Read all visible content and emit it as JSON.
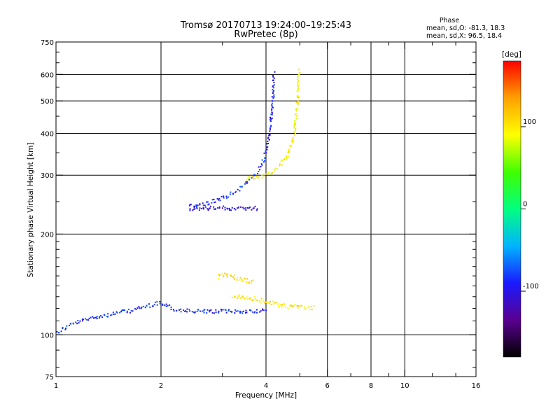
{
  "chart_data": {
    "type": "scatter",
    "title": "Tromsø 20170713 19:24:00–19:25:43",
    "subtitle": "RwPretec (8p)",
    "xlabel": "Frequency [MHz]",
    "ylabel": "Stationary phase Virtual Height [km]",
    "x_scale": "log",
    "y_scale": "log",
    "xlim": [
      1,
      16
    ],
    "ylim": [
      75,
      750
    ],
    "x_ticks": [
      1,
      2,
      4,
      6,
      8,
      10,
      16
    ],
    "x_tick_labels": [
      "1",
      "2",
      "4",
      "6",
      "8",
      "10",
      "16"
    ],
    "x_minor_ticks": [
      3,
      5,
      7,
      9,
      12,
      14
    ],
    "y_ticks": [
      75,
      100,
      200,
      300,
      400,
      500,
      600,
      750
    ],
    "y_tick_labels": [
      "75",
      "100",
      "200",
      "300",
      "400",
      "500",
      "600",
      "750"
    ],
    "y_minor_ticks": [
      80,
      90,
      110,
      120,
      130,
      140,
      150,
      160,
      170,
      180,
      190,
      250,
      350,
      450,
      550,
      650,
      700
    ],
    "grid": true,
    "phase_stats": {
      "heading": "Phase",
      "line_o": "mean, sd,O: -81.3, 18.3",
      "line_x": "mean, sd,X:  96.5, 18.4"
    },
    "colorbar": {
      "label": "[deg]",
      "range": [
        -180,
        180
      ],
      "tick_values": [
        100,
        0,
        -100
      ],
      "tick_labels": [
        "100",
        "0",
        "-100"
      ],
      "colors": [
        "#000000",
        "#5a0090",
        "#1a1aff",
        "#00b4ff",
        "#00ff80",
        "#40ff00",
        "#ffff00",
        "#ffa000",
        "#ff0000"
      ]
    },
    "series": [
      {
        "mode": "O",
        "phase": -85,
        "x": [
          1.0,
          1.1,
          1.2,
          1.3,
          1.4,
          1.5,
          1.6,
          1.7,
          1.8,
          1.9,
          2.0,
          2.2,
          2.5,
          3.0,
          3.5,
          4.0
        ],
        "y": [
          102,
          108,
          111,
          114,
          115,
          117,
          118,
          120,
          122,
          124,
          125,
          119,
          118,
          118,
          118,
          119
        ]
      },
      {
        "mode": "O",
        "phase": -90,
        "x": [
          2.4,
          2.7,
          3.0,
          3.3,
          3.6,
          3.8,
          3.9,
          4.0,
          4.05,
          4.1,
          4.15,
          4.18,
          4.2
        ],
        "y": [
          243,
          248,
          258,
          272,
          292,
          312,
          330,
          355,
          385,
          420,
          470,
          530,
          610
        ]
      },
      {
        "mode": "O",
        "phase": -100,
        "x": [
          2.4,
          2.6,
          2.8,
          3.0,
          3.2,
          3.4,
          3.6,
          3.8
        ],
        "y": [
          240,
          240,
          240,
          240,
          240,
          240,
          240,
          240
        ]
      },
      {
        "mode": "X",
        "phase": 95,
        "x": [
          3.5,
          3.8,
          4.0,
          4.2,
          4.4,
          4.6,
          4.7,
          4.8,
          4.85,
          4.9,
          4.95
        ],
        "y": [
          295,
          298,
          303,
          312,
          325,
          345,
          370,
          400,
          440,
          500,
          620
        ]
      },
      {
        "mode": "X",
        "phase": 100,
        "x": [
          3.2,
          3.5,
          3.8,
          4.0,
          4.3,
          4.6,
          4.9,
          5.2,
          5.5
        ],
        "y": [
          131,
          130,
          128,
          126,
          124,
          122,
          122,
          121,
          121
        ]
      },
      {
        "mode": "X",
        "phase": 110,
        "x": [
          2.9,
          3.1,
          3.3,
          3.5,
          3.7
        ],
        "y": [
          150,
          152,
          148,
          146,
          144
        ]
      }
    ]
  }
}
